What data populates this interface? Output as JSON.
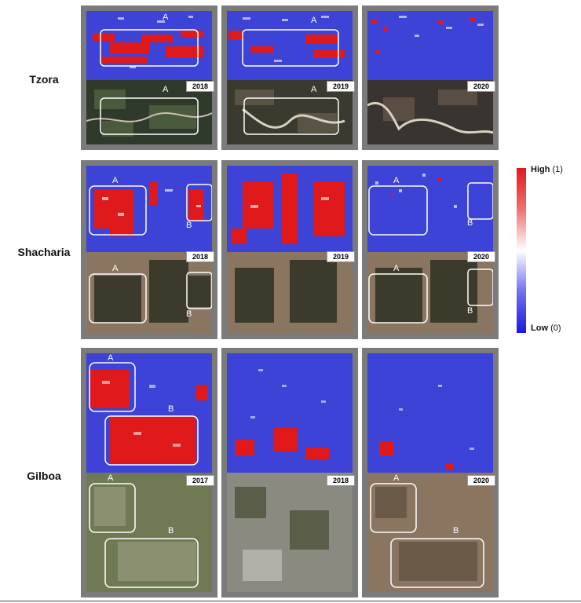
{
  "rows": [
    {
      "name": "Tzora",
      "years": [
        "2018",
        "2019",
        "2020"
      ]
    },
    {
      "name": "Shacharia",
      "years": [
        "2018",
        "2019",
        "2020"
      ]
    },
    {
      "name": "Gilboa",
      "years": [
        "2017",
        "2018",
        "2020"
      ]
    }
  ],
  "box_labels": {
    "a": "A",
    "b": "B"
  },
  "legend": {
    "high": "High",
    "high_value": "(1)",
    "low": "Low",
    "low_value": "(0)"
  },
  "colors": {
    "map_blue": "#3c43d6",
    "high_red": "#e01a1a",
    "frame_gray": "#7b7b7b"
  }
}
